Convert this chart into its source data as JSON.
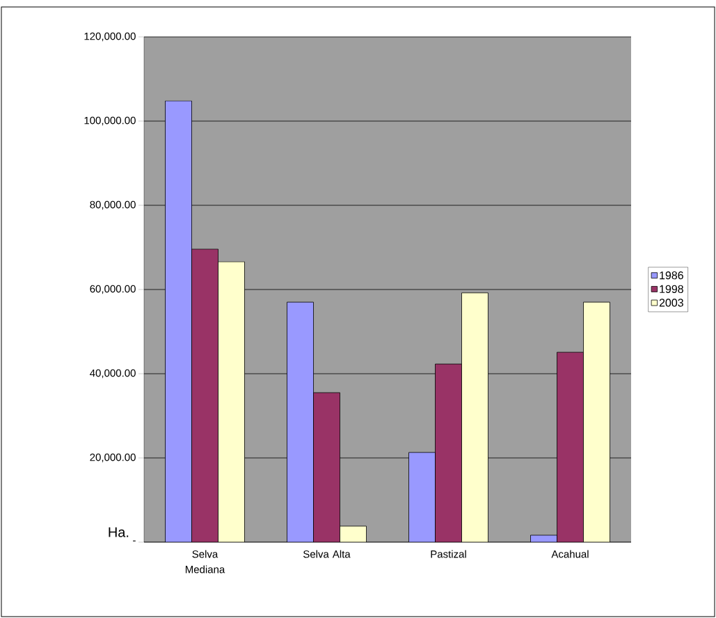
{
  "chart_data": {
    "type": "bar",
    "ylabel": "Ha.",
    "categories": [
      "Selva Mediana",
      "Selva Alta",
      "Pastizal",
      "Acahual"
    ],
    "series": [
      {
        "name": "1986",
        "color": "#9999ff",
        "values": [
          104800,
          57000,
          21300,
          1650
        ]
      },
      {
        "name": "1998",
        "color": "#993366",
        "values": [
          69600,
          35500,
          42300,
          45100
        ]
      },
      {
        "name": "2003",
        "color": "#ffffcc",
        "values": [
          66600,
          3800,
          59200,
          57000
        ]
      }
    ],
    "ylim": [
      0,
      120000
    ],
    "yticks": [
      {
        "value": 0,
        "label": "-"
      },
      {
        "value": 20000,
        "label": "20,000.00"
      },
      {
        "value": 40000,
        "label": "40,000.00"
      },
      {
        "value": 60000,
        "label": "60,000.00"
      },
      {
        "value": 80000,
        "label": "80,000.00"
      },
      {
        "value": 100000,
        "label": "100,000.00"
      },
      {
        "value": 120000,
        "label": "120,000.00"
      }
    ],
    "grid": "y",
    "legend": "right"
  }
}
